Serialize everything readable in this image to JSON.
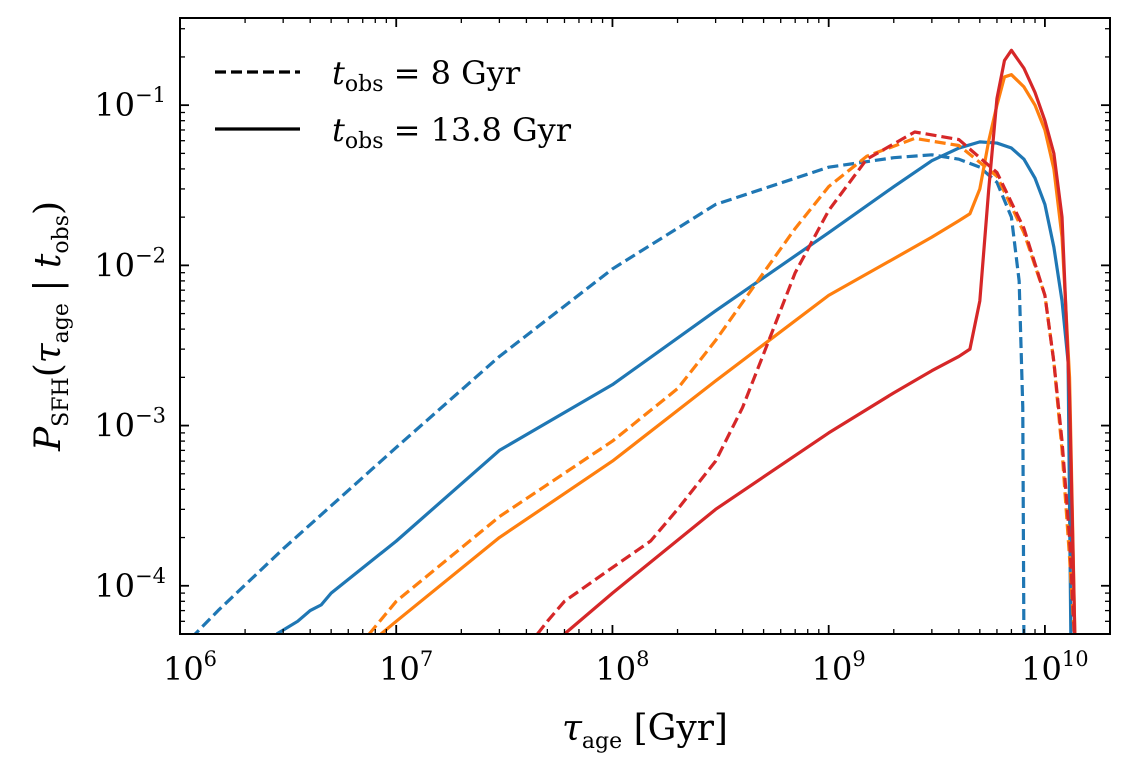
{
  "chart_data": {
    "type": "line",
    "xscale": "log",
    "yscale": "log",
    "xlim": [
      1000000,
      20000000000
    ],
    "ylim": [
      5e-05,
      0.35
    ],
    "xlabel": "τage [Gyr]",
    "xlabel_parts": {
      "main": "τ",
      "sub": "age",
      "unit": " [Gyr]"
    },
    "ylabel_parts": {
      "p": "P",
      "p_sub": "SFH",
      "open": "(",
      "tau": "τ",
      "tau_sub": "age",
      "bar": " | ",
      "t": "t",
      "t_sub": "obs",
      "close": ")"
    },
    "x_ticks": [
      {
        "value": 1000000,
        "base": "10",
        "exp": "6"
      },
      {
        "value": 10000000,
        "base": "10",
        "exp": "7"
      },
      {
        "value": 100000000,
        "base": "10",
        "exp": "8"
      },
      {
        "value": 1000000000,
        "base": "10",
        "exp": "9"
      },
      {
        "value": 10000000000,
        "base": "10",
        "exp": "10"
      }
    ],
    "y_ticks": [
      {
        "value": 0.0001,
        "base": "10",
        "exp": "−4"
      },
      {
        "value": 0.001,
        "base": "10",
        "exp": "−3"
      },
      {
        "value": 0.01,
        "base": "10",
        "exp": "−2"
      },
      {
        "value": 0.1,
        "base": "10",
        "exp": "−1"
      }
    ],
    "legend": {
      "position": "top-left",
      "entries": [
        {
          "style": "dashed",
          "label_var": "t",
          "label_sub": "obs",
          "label_rest": " = 8 Gyr"
        },
        {
          "style": "solid",
          "label_var": "t",
          "label_sub": "obs",
          "label_rest": " = 13.8 Gyr"
        }
      ]
    },
    "series": [
      {
        "name": "blue-dashed",
        "color": "#1f77b4",
        "style": "dashed",
        "x": [
          1000000,
          1500000,
          3000000,
          10000000,
          30000000,
          100000000,
          300000000,
          1000000000,
          2000000000,
          3000000000,
          4000000000,
          5000000000,
          6000000000,
          7000000000,
          7600000000,
          7900000000,
          8000000000
        ],
        "y": [
          4e-05,
          7e-05,
          0.00017,
          0.00073,
          0.0027,
          0.0095,
          0.024,
          0.041,
          0.047,
          0.049,
          0.046,
          0.041,
          0.033,
          0.02,
          0.008,
          0.0013,
          4e-05
        ]
      },
      {
        "name": "blue-solid",
        "color": "#1f77b4",
        "style": "solid",
        "x": [
          2800000,
          3500000,
          4000000,
          4500000,
          5000000,
          10000000,
          30000000,
          100000000,
          300000000,
          1000000000,
          2000000000,
          3000000000,
          4000000000,
          5000000000,
          6000000000,
          7000000000,
          8000000000,
          9000000000,
          10000000000,
          11000000000,
          12000000000,
          12800000000,
          13200000000
        ],
        "y": [
          5e-05,
          6e-05,
          7e-05,
          7.6e-05,
          9e-05,
          0.00019,
          0.0007,
          0.0018,
          0.0052,
          0.016,
          0.031,
          0.045,
          0.054,
          0.059,
          0.058,
          0.054,
          0.046,
          0.035,
          0.024,
          0.013,
          0.006,
          0.0025,
          4e-05
        ]
      },
      {
        "name": "orange-dashed",
        "color": "#ff7f0e",
        "style": "dashed",
        "x": [
          7500000,
          10000000,
          30000000,
          100000000,
          200000000,
          300000000,
          500000000,
          700000000,
          1000000000,
          1500000000,
          2500000000,
          4000000000,
          6000000000,
          8000000000,
          10000000000,
          11000000000,
          12000000000,
          13000000000,
          13800000000
        ],
        "y": [
          5e-05,
          8e-05,
          0.00027,
          0.0008,
          0.0017,
          0.0034,
          0.009,
          0.017,
          0.031,
          0.048,
          0.062,
          0.056,
          0.036,
          0.016,
          0.0065,
          0.0025,
          0.0007,
          0.00015,
          4e-05
        ]
      },
      {
        "name": "orange-solid",
        "color": "#ff7f0e",
        "style": "solid",
        "x": [
          8500000,
          10000000,
          30000000,
          100000000,
          300000000,
          1000000000,
          2000000000,
          3000000000,
          4000000000,
          4500000000,
          5000000000,
          5500000000,
          6000000000,
          6500000000,
          7000000000,
          8000000000,
          9000000000,
          10000000000,
          11000000000,
          12000000000,
          13000000000,
          13800000000
        ],
        "y": [
          5e-05,
          6e-05,
          0.0002,
          0.0006,
          0.0019,
          0.0065,
          0.011,
          0.015,
          0.019,
          0.021,
          0.03,
          0.06,
          0.1,
          0.15,
          0.155,
          0.13,
          0.1,
          0.07,
          0.04,
          0.015,
          0.002,
          4e-05
        ]
      },
      {
        "name": "red-dashed",
        "color": "#d62728",
        "style": "dashed",
        "x": [
          45000000,
          50000000,
          60000000,
          100000000,
          150000000,
          200000000,
          300000000,
          400000000,
          500000000,
          700000000,
          1000000000,
          1500000000,
          2500000000,
          4000000000,
          6000000000,
          8000000000,
          10000000000,
          11000000000,
          12000000000,
          13000000000,
          13800000000
        ],
        "y": [
          5e-05,
          6e-05,
          8e-05,
          0.00013,
          0.00019,
          0.0003,
          0.0006,
          0.0013,
          0.0028,
          0.009,
          0.022,
          0.046,
          0.068,
          0.061,
          0.038,
          0.017,
          0.0065,
          0.0025,
          0.0008,
          0.0002,
          4e-05
        ]
      },
      {
        "name": "red-solid",
        "color": "#d62728",
        "style": "solid",
        "x": [
          60000000,
          100000000,
          300000000,
          1000000000,
          2000000000,
          3000000000,
          4000000000,
          4500000000,
          5000000000,
          5500000000,
          6000000000,
          6500000000,
          7000000000,
          8000000000,
          9000000000,
          10000000000,
          11000000000,
          12000000000,
          13000000000,
          13800000000
        ],
        "y": [
          5e-05,
          9e-05,
          0.0003,
          0.0009,
          0.0016,
          0.0022,
          0.0027,
          0.003,
          0.006,
          0.03,
          0.11,
          0.19,
          0.22,
          0.17,
          0.12,
          0.08,
          0.05,
          0.02,
          0.0015,
          4e-05
        ]
      }
    ]
  }
}
